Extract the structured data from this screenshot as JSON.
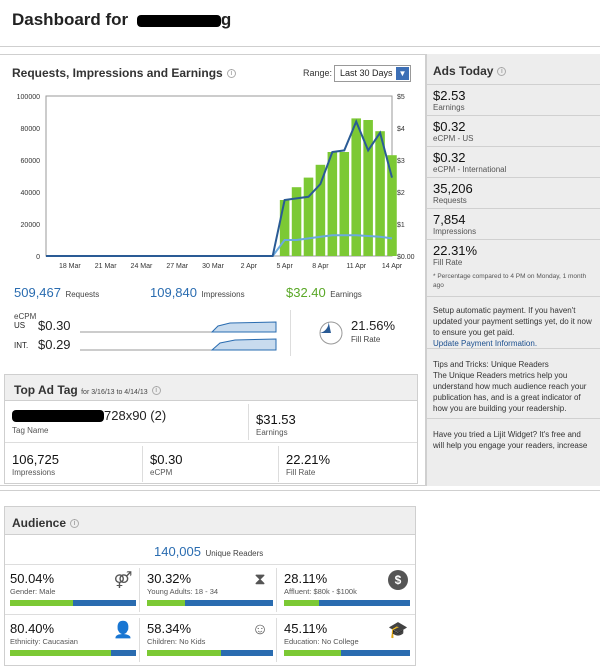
{
  "header": {
    "title_prefix": "Dashboard for",
    "title_tail": "g"
  },
  "chart_panel": {
    "title": "Requests, Impressions and Earnings",
    "range_label": "Range:",
    "range_value": "Last 30 Days"
  },
  "chart_data": {
    "type": "bar",
    "categories": [
      "16 Mar",
      "17 Mar",
      "18 Mar",
      "19 Mar",
      "20 Mar",
      "21 Mar",
      "22 Mar",
      "23 Mar",
      "24 Mar",
      "25 Mar",
      "26 Mar",
      "27 Mar",
      "28 Mar",
      "29 Mar",
      "30 Mar",
      "31 Mar",
      "1 Apr",
      "2 Apr",
      "3 Apr",
      "4 Apr",
      "5 Apr",
      "6 Apr",
      "7 Apr",
      "8 Apr",
      "9 Apr",
      "10 Apr",
      "11 Apr",
      "12 Apr",
      "13 Apr",
      "14 Apr"
    ],
    "x_tick_labels": [
      "18 Mar",
      "21 Mar",
      "24 Mar",
      "27 Mar",
      "30 Mar",
      "2 Apr",
      "5 Apr",
      "8 Apr",
      "11 Apr",
      "14 Apr"
    ],
    "y_left_ticks": [
      "100000",
      "80000",
      "60000",
      "40000",
      "20000",
      "0"
    ],
    "y_right_ticks": [
      "$5",
      "$4",
      "$3",
      "$2",
      "$1",
      "$0.00"
    ],
    "ylim_left": [
      0,
      100000
    ],
    "ylim_right": [
      0,
      5
    ],
    "series": [
      {
        "kind": "bar",
        "values": [
          0,
          0,
          0,
          0,
          0,
          0,
          0,
          0,
          0,
          0,
          0,
          0,
          0,
          0,
          0,
          0,
          0,
          0,
          0,
          0,
          35000,
          43000,
          49000,
          57000,
          65000,
          65000,
          86000,
          85000,
          78000,
          63000
        ]
      },
      {
        "kind": "line",
        "values": [
          0,
          0,
          0,
          0,
          0,
          0,
          0,
          0,
          0,
          0,
          0,
          0,
          0,
          0,
          0,
          0,
          0,
          0,
          0,
          0,
          10000,
          10000,
          11000,
          12000,
          13000,
          13000,
          13000,
          12500,
          12000,
          11000
        ]
      },
      {
        "kind": "line",
        "axis": "right",
        "values": [
          0,
          0,
          0,
          0,
          0,
          0,
          0,
          0,
          0,
          0,
          0,
          0,
          0,
          0,
          0,
          0,
          0,
          0,
          0,
          0,
          1.75,
          1.8,
          1.85,
          2.25,
          3.25,
          3.3,
          4.2,
          3.3,
          3.85,
          2.45
        ]
      }
    ],
    "colors": {
      "bar": "#7cc934",
      "line_dark": "#2a5b95",
      "line_light": "#6aa9de"
    }
  },
  "totals": {
    "requests_value": "509,467",
    "requests_label": "Requests",
    "impressions_value": "109,840",
    "impressions_label": "Impressions",
    "earnings_value": "$32.40",
    "earnings_label": "Earnings"
  },
  "ecpm": {
    "title": "eCPM",
    "us_label": "US",
    "us_value": "$0.30",
    "intl_label": "INT.",
    "intl_value": "$0.29"
  },
  "fill_rate": {
    "value": "21.56%",
    "label": "Fill Rate",
    "fraction": 0.2156
  },
  "top_ad_tag": {
    "title": "Top Ad Tag",
    "date_range": "for 3/16/13 to 4/14/13",
    "tag_name_value": "728x90 (2)",
    "tag_name_label": "Tag Name",
    "earnings_value": "$31.53",
    "earnings_label": "Earnings",
    "impressions_value": "106,725",
    "impressions_label": "Impressions",
    "ecpm_value": "$0.30",
    "ecpm_label": "eCPM",
    "fill_rate_value": "22.21%",
    "fill_rate_label": "Fill Rate"
  },
  "ads_today": {
    "title": "Ads Today",
    "items": [
      {
        "value": "$2.53",
        "label": "Earnings"
      },
      {
        "value": "$0.32",
        "label": "eCPM - US"
      },
      {
        "value": "$0.32",
        "label": "eCPM - International"
      },
      {
        "value": "35,206",
        "label": "Requests"
      },
      {
        "value": "7,854",
        "label": "Impressions"
      },
      {
        "value": "22.31%",
        "label": "Fill Rate"
      }
    ],
    "footnote": "* Percentage compared to 4 PM on Monday, 1 month ago"
  },
  "payment": {
    "text": "Setup automatic payment. If you haven't updated your payment settings yet, do it now to ensure you get paid.",
    "link": "Update Payment Information."
  },
  "tips": {
    "title": "Tips and Tricks: Unique Readers",
    "text": "The Unique Readers metrics help you understand how much audience reach your publication has, and is a great indicator of how you are building your readership."
  },
  "lijit": {
    "text": "Have you tried a Lijit Widget? It's free and will help you engage your readers, increase time-on-site and page views per visit"
  },
  "audience": {
    "title": "Audience",
    "unique_value": "140,005",
    "unique_label": "Unique Readers",
    "cells": [
      {
        "pct": "50.04%",
        "label": "Gender: Male",
        "icon": "gender-icon",
        "fraction": 0.5004
      },
      {
        "pct": "30.32%",
        "label": "Young Adults: 18 - 34",
        "icon": "hourglass-icon",
        "fraction": 0.3032
      },
      {
        "pct": "28.11%",
        "label": "Affluent: $80k - $100k",
        "icon": "dollar-icon",
        "fraction": 0.2811
      },
      {
        "pct": "80.40%",
        "label": "Ethnicity: Caucasian",
        "icon": "person-icon",
        "fraction": 0.804
      },
      {
        "pct": "58.34%",
        "label": "Children: No Kids",
        "icon": "baby-icon",
        "fraction": 0.5834
      },
      {
        "pct": "45.11%",
        "label": "Education: No College",
        "icon": "graduation-cap-icon",
        "fraction": 0.4511
      }
    ]
  }
}
